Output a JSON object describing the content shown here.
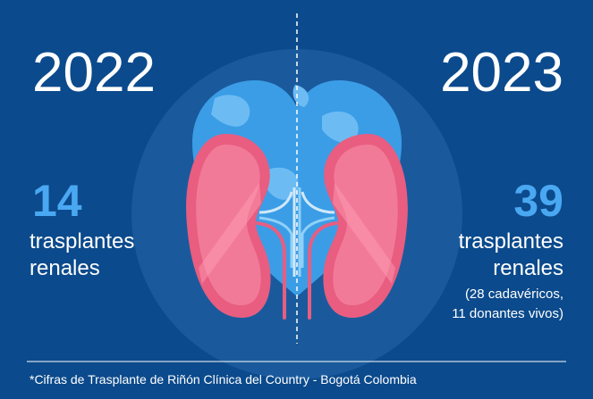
{
  "left": {
    "year": 2022,
    "count": 14,
    "label_lines": [
      "trasplantes",
      "renales"
    ]
  },
  "right": {
    "year": 2023,
    "count": 39,
    "label_lines": [
      "trasplantes",
      "renales"
    ],
    "details": [
      "(28 cadavéricos,",
      "11 donantes vivos)"
    ]
  },
  "footnote": "*Cifras de Trasplante de Riñón Clínica del Country - Bogotá Colombia"
}
